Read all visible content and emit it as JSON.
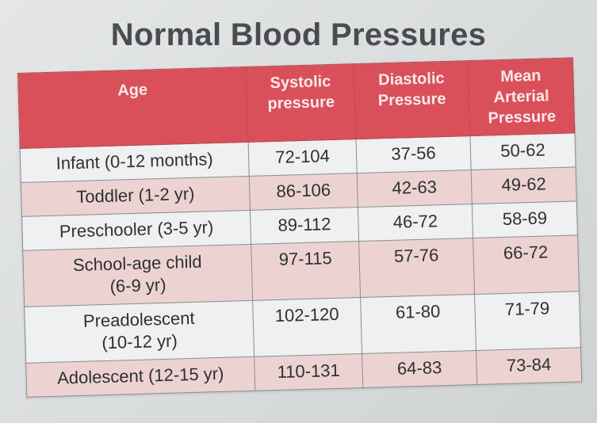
{
  "title": "Normal Blood Pressures",
  "colors": {
    "header_bg": "#d9505a",
    "header_text": "#fbe9ea",
    "row_light": "#eef0f1",
    "row_pink": "#ecd3d2",
    "title_text": "#4a4c4f"
  },
  "table": {
    "headers": {
      "age": [
        "Age"
      ],
      "systolic": [
        "Systolic",
        "pressure"
      ],
      "diastolic": [
        "Diastolic",
        "Pressure"
      ],
      "mean_arterial": [
        "Mean Arterial",
        "Pressure"
      ]
    },
    "rows": [
      {
        "age": [
          "Infant (0-12 months)"
        ],
        "systolic": "72-104",
        "diastolic": "37-56",
        "mean_arterial": "50-62"
      },
      {
        "age": [
          "Toddler (1-2 yr)"
        ],
        "systolic": "86-106",
        "diastolic": "42-63",
        "mean_arterial": "49-62"
      },
      {
        "age": [
          "Preschooler (3-5 yr)"
        ],
        "systolic": "89-112",
        "diastolic": "46-72",
        "mean_arterial": "58-69"
      },
      {
        "age": [
          "School-age child",
          "(6-9 yr)"
        ],
        "systolic": "97-115",
        "diastolic": "57-76",
        "mean_arterial": "66-72"
      },
      {
        "age": [
          "Preadolescent",
          "(10-12 yr)"
        ],
        "systolic": "102-120",
        "diastolic": "61-80",
        "mean_arterial": "71-79"
      },
      {
        "age": [
          "Adolescent (12-15 yr)"
        ],
        "systolic": "110-131",
        "diastolic": "64-83",
        "mean_arterial": "73-84"
      }
    ]
  }
}
